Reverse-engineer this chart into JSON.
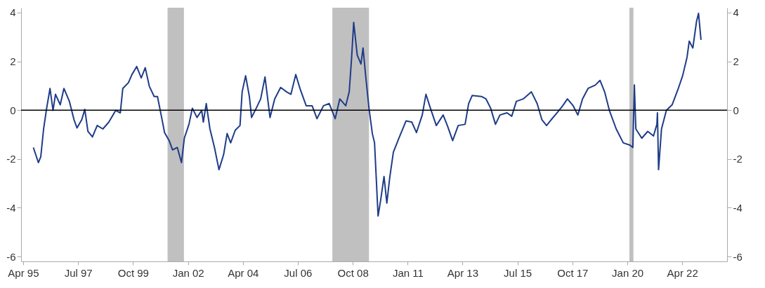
{
  "chart_data": {
    "type": "line",
    "x": [
      "1995-09-01",
      "1995-11-15",
      "1995-12-21",
      "1996-02-01",
      "1996-03-18",
      "1996-05-07",
      "1996-06-21",
      "1996-07-28",
      "1996-10-07",
      "1996-12-01",
      "1997-02-21",
      "1997-05-01",
      "1997-06-15",
      "1997-08-25",
      "1997-10-10",
      "1997-11-25",
      "1998-02-01",
      "1998-04-13",
      "1998-07-07",
      "1998-10-04",
      "1999-01-15",
      "1999-03-25",
      "1999-05-01",
      "1999-07-25",
      "1999-09-15",
      "1999-11-25",
      "2000-02-01",
      "2000-04-01",
      "2000-06-01",
      "2000-08-13",
      "2000-10-01",
      "2000-11-25",
      "2001-01-15",
      "2001-03-25",
      "2001-05-15",
      "2001-07-25",
      "2001-09-25",
      "2001-11-07",
      "2002-01-15",
      "2002-03-07",
      "2002-05-15",
      "2002-07-25",
      "2002-08-18",
      "2002-10-01",
      "2002-11-25",
      "2003-02-01",
      "2003-04-09",
      "2003-06-18",
      "2003-08-09",
      "2003-10-01",
      "2003-12-09",
      "2004-02-18",
      "2004-03-21",
      "2004-05-12",
      "2004-07-07",
      "2004-08-09",
      "2004-10-18",
      "2004-12-23",
      "2005-02-26",
      "2005-05-12",
      "2005-07-21",
      "2005-10-18",
      "2006-01-15",
      "2006-03-21",
      "2006-06-01",
      "2006-08-09",
      "2006-11-04",
      "2007-02-01",
      "2007-04-15",
      "2007-07-21",
      "2007-10-15",
      "2008-01-12",
      "2008-03-21",
      "2008-06-18",
      "2008-08-09",
      "2008-09-12",
      "2008-10-15",
      "2008-12-07",
      "2009-02-01",
      "2009-03-04",
      "2009-04-09",
      "2009-06-01",
      "2009-07-21",
      "2009-08-23",
      "2009-10-15",
      "2009-11-21",
      "2010-01-12",
      "2010-02-23",
      "2010-04-07",
      "2010-06-01",
      "2010-08-23",
      "2010-12-07",
      "2011-03-04",
      "2011-05-12",
      "2011-08-07",
      "2011-10-01",
      "2011-12-07",
      "2012-03-04",
      "2012-06-15",
      "2012-08-23",
      "2012-11-04",
      "2013-01-26",
      "2013-05-09",
      "2013-07-01",
      "2013-08-23",
      "2014-01-09",
      "2014-03-18",
      "2014-05-26",
      "2014-08-07",
      "2014-10-12",
      "2015-01-26",
      "2015-04-07",
      "2015-06-15",
      "2015-09-26",
      "2016-01-26",
      "2016-04-21",
      "2016-07-01",
      "2016-09-09",
      "2016-11-18",
      "2017-02-12",
      "2017-05-09",
      "2017-07-18",
      "2017-10-12",
      "2017-12-21",
      "2018-03-01",
      "2018-05-23",
      "2018-09-09",
      "2018-11-18",
      "2019-01-26",
      "2019-04-07",
      "2019-07-18",
      "2019-11-01",
      "2020-02-12",
      "2020-03-23",
      "2020-04-15",
      "2020-05-07",
      "2020-08-04",
      "2020-11-01",
      "2021-01-26",
      "2021-03-18",
      "2021-03-26",
      "2021-04-12",
      "2021-05-26",
      "2021-08-07",
      "2021-11-01",
      "2022-01-26",
      "2022-04-07",
      "2022-06-12",
      "2022-07-15",
      "2022-09-07",
      "2022-11-01",
      "2022-12-01",
      "2023-01-07"
    ],
    "series": [
      {
        "color": "#1f3c88",
        "values": [
          -1.53,
          -2.15,
          -1.91,
          -0.77,
          0.08,
          0.89,
          -0.01,
          0.65,
          0.22,
          0.89,
          0.36,
          -0.39,
          -0.73,
          -0.39,
          0.03,
          -0.87,
          -1.1,
          -0.63,
          -0.77,
          -0.49,
          -0.01,
          -0.11,
          0.89,
          1.13,
          1.46,
          1.79,
          1.32,
          1.74,
          0.98,
          0.56,
          0.56,
          -0.2,
          -0.92,
          -1.25,
          -1.63,
          -1.53,
          -2.15,
          -1.15,
          -0.58,
          0.08,
          -0.3,
          -0.01,
          -0.49,
          0.27,
          -0.77,
          -1.53,
          -2.44,
          -1.82,
          -0.96,
          -1.34,
          -0.82,
          -0.63,
          0.75,
          1.41,
          0.56,
          -0.3,
          0.08,
          0.46,
          1.36,
          -0.3,
          0.46,
          0.93,
          0.75,
          0.65,
          1.46,
          0.84,
          0.18,
          0.18,
          -0.35,
          0.18,
          0.27,
          -0.35,
          0.46,
          0.18,
          0.75,
          2.07,
          3.6,
          2.26,
          1.89,
          2.55,
          1.5,
          0.08,
          -0.96,
          -1.34,
          -4.34,
          -3.72,
          -2.72,
          -3.81,
          -2.77,
          -1.72,
          -1.15,
          -0.44,
          -0.49,
          -0.92,
          -0.2,
          0.65,
          0.08,
          -0.63,
          -0.2,
          -0.68,
          -1.25,
          -0.63,
          -0.58,
          0.27,
          0.6,
          0.56,
          0.46,
          0.08,
          -0.58,
          -0.2,
          -0.11,
          -0.25,
          0.36,
          0.46,
          0.75,
          0.27,
          -0.39,
          -0.63,
          -0.39,
          -0.11,
          0.18,
          0.46,
          0.18,
          -0.2,
          0.46,
          0.89,
          1.03,
          1.22,
          0.75,
          -0.01,
          -0.77,
          -1.34,
          -1.44,
          -1.53,
          1.03,
          -0.77,
          -1.15,
          -0.87,
          -1.06,
          -0.58,
          -0.11,
          -2.44,
          -0.77,
          -0.01,
          0.22,
          0.84,
          1.41,
          2.17,
          2.83,
          2.55,
          3.64,
          3.97,
          2.88
        ]
      }
    ],
    "xlim": [
      "1995-03-01",
      "2024-02-01"
    ],
    "xticks": [
      {
        "value": "1995-04-01",
        "label": "Apr 95"
      },
      {
        "value": "1997-07-01",
        "label": "Jul 97"
      },
      {
        "value": "1999-10-01",
        "label": "Oct 99"
      },
      {
        "value": "2002-01-01",
        "label": "Jan 02"
      },
      {
        "value": "2004-04-01",
        "label": "Apr 04"
      },
      {
        "value": "2006-07-01",
        "label": "Jul 06"
      },
      {
        "value": "2008-10-01",
        "label": "Oct 08"
      },
      {
        "value": "2011-01-01",
        "label": "Jan 11"
      },
      {
        "value": "2013-04-01",
        "label": "Apr 13"
      },
      {
        "value": "2015-07-01",
        "label": "Jul 15"
      },
      {
        "value": "2017-10-01",
        "label": "Oct 17"
      },
      {
        "value": "2020-01-01",
        "label": "Jan 20"
      },
      {
        "value": "2022-04-01",
        "label": "Apr 22"
      }
    ],
    "ylim": [
      -6.2,
      4.2
    ],
    "yticks": [
      -6,
      -4,
      -2,
      0,
      2,
      4
    ],
    "y2lim": [
      -6.2,
      4.2
    ],
    "y2ticks": [
      -6,
      -4,
      -2,
      0,
      2,
      4
    ],
    "ref_lines": [
      {
        "axis": "y2",
        "value": 0,
        "color": "#000000"
      }
    ],
    "bands": [
      {
        "axis": "x",
        "from": "2001-03-01",
        "to": "2001-11-01",
        "color": "#c0c0c0"
      },
      {
        "axis": "x",
        "from": "2007-12-01",
        "to": "2009-06-01",
        "color": "#c0c0c0"
      },
      {
        "axis": "x",
        "from": "2020-02-01",
        "to": "2020-04-01",
        "color": "#c0c0c0"
      }
    ],
    "grid": false
  }
}
